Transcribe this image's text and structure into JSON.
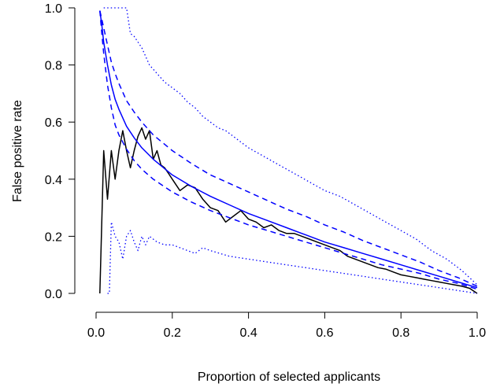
{
  "chart_data": {
    "type": "line",
    "title": "",
    "xlabel": "Proportion of selected applicants",
    "ylabel": "False positive rate",
    "xlim": [
      0.0,
      1.0
    ],
    "ylim": [
      0.0,
      1.0
    ],
    "xticks": [
      "0.0",
      "0.2",
      "0.4",
      "0.6",
      "0.8",
      "1.0"
    ],
    "yticks": [
      "0.0",
      "0.2",
      "0.4",
      "0.6",
      "0.8",
      "1.0"
    ],
    "grid": false,
    "legend": null,
    "series": [
      {
        "color": "#000000",
        "style": "solid",
        "x": [
          0.01,
          0.02,
          0.03,
          0.04,
          0.05,
          0.06,
          0.07,
          0.08,
          0.09,
          0.1,
          0.11,
          0.12,
          0.13,
          0.14,
          0.15,
          0.16,
          0.17,
          0.18,
          0.19,
          0.2,
          0.22,
          0.24,
          0.26,
          0.28,
          0.3,
          0.32,
          0.34,
          0.36,
          0.38,
          0.4,
          0.42,
          0.44,
          0.46,
          0.48,
          0.5,
          0.52,
          0.54,
          0.56,
          0.58,
          0.6,
          0.62,
          0.64,
          0.66,
          0.68,
          0.7,
          0.72,
          0.74,
          0.76,
          0.78,
          0.8,
          0.82,
          0.84,
          0.86,
          0.88,
          0.9,
          0.92,
          0.94,
          0.96,
          0.98,
          1.0
        ],
        "values": [
          0.0,
          0.5,
          0.33,
          0.5,
          0.4,
          0.5,
          0.57,
          0.5,
          0.44,
          0.5,
          0.55,
          0.58,
          0.54,
          0.57,
          0.47,
          0.5,
          0.45,
          0.44,
          0.42,
          0.4,
          0.36,
          0.38,
          0.37,
          0.33,
          0.3,
          0.29,
          0.25,
          0.27,
          0.29,
          0.26,
          0.25,
          0.23,
          0.24,
          0.22,
          0.21,
          0.21,
          0.2,
          0.19,
          0.18,
          0.17,
          0.16,
          0.15,
          0.13,
          0.12,
          0.11,
          0.1,
          0.09,
          0.085,
          0.075,
          0.065,
          0.06,
          0.055,
          0.05,
          0.045,
          0.04,
          0.035,
          0.03,
          0.025,
          0.018,
          0.0
        ]
      },
      {
        "color": "#0000ff",
        "style": "solid",
        "x": [
          0.01,
          0.015,
          0.02,
          0.03,
          0.04,
          0.05,
          0.06,
          0.08,
          0.1,
          0.12,
          0.15,
          0.2,
          0.25,
          0.3,
          0.35,
          0.4,
          0.45,
          0.5,
          0.55,
          0.6,
          0.65,
          0.7,
          0.75,
          0.8,
          0.85,
          0.9,
          0.95,
          1.0
        ],
        "values": [
          0.99,
          0.94,
          0.88,
          0.8,
          0.73,
          0.68,
          0.645,
          0.585,
          0.545,
          0.51,
          0.47,
          0.415,
          0.375,
          0.34,
          0.31,
          0.28,
          0.255,
          0.23,
          0.205,
          0.18,
          0.16,
          0.14,
          0.12,
          0.1,
          0.08,
          0.06,
          0.04,
          0.02
        ]
      },
      {
        "color": "#0000ff",
        "style": "dashed",
        "x": [
          0.01,
          0.015,
          0.02,
          0.03,
          0.04,
          0.05,
          0.06,
          0.08,
          0.1,
          0.12,
          0.15,
          0.2,
          0.25,
          0.3,
          0.35,
          0.4,
          0.45,
          0.5,
          0.55,
          0.6,
          0.65,
          0.7,
          0.75,
          0.8,
          0.85,
          0.9,
          0.95,
          1.0
        ],
        "values": [
          0.99,
          0.96,
          0.93,
          0.87,
          0.81,
          0.77,
          0.735,
          0.675,
          0.635,
          0.6,
          0.555,
          0.5,
          0.455,
          0.415,
          0.385,
          0.355,
          0.325,
          0.295,
          0.27,
          0.24,
          0.215,
          0.185,
          0.16,
          0.135,
          0.11,
          0.08,
          0.055,
          0.025
        ]
      },
      {
        "color": "#0000ff",
        "style": "dashed",
        "x": [
          0.01,
          0.015,
          0.02,
          0.03,
          0.04,
          0.05,
          0.06,
          0.08,
          0.1,
          0.12,
          0.15,
          0.2,
          0.25,
          0.3,
          0.35,
          0.4,
          0.45,
          0.5,
          0.55,
          0.6,
          0.65,
          0.7,
          0.75,
          0.8,
          0.85,
          0.9,
          0.95,
          1.0
        ],
        "values": [
          0.99,
          0.91,
          0.84,
          0.73,
          0.65,
          0.59,
          0.555,
          0.505,
          0.465,
          0.435,
          0.4,
          0.355,
          0.32,
          0.29,
          0.265,
          0.24,
          0.22,
          0.2,
          0.18,
          0.16,
          0.14,
          0.12,
          0.1,
          0.085,
          0.07,
          0.05,
          0.035,
          0.015
        ]
      },
      {
        "color": "#0000ff",
        "style": "dotted",
        "x": [
          0.02,
          0.04,
          0.06,
          0.08,
          0.09,
          0.1,
          0.12,
          0.14,
          0.16,
          0.18,
          0.2,
          0.22,
          0.24,
          0.26,
          0.28,
          0.3,
          0.32,
          0.34,
          0.36,
          0.38,
          0.4,
          0.44,
          0.48,
          0.52,
          0.56,
          0.6,
          0.64,
          0.68,
          0.72,
          0.76,
          0.8,
          0.84,
          0.88,
          0.92,
          0.96,
          1.0
        ],
        "values": [
          1.0,
          1.0,
          1.0,
          1.0,
          0.91,
          0.9,
          0.86,
          0.8,
          0.77,
          0.74,
          0.72,
          0.7,
          0.67,
          0.65,
          0.62,
          0.6,
          0.58,
          0.57,
          0.55,
          0.53,
          0.51,
          0.48,
          0.45,
          0.42,
          0.39,
          0.36,
          0.34,
          0.31,
          0.28,
          0.25,
          0.22,
          0.19,
          0.15,
          0.12,
          0.08,
          0.03
        ]
      },
      {
        "color": "#0000ff",
        "style": "dotted",
        "x": [
          0.03,
          0.035,
          0.04,
          0.05,
          0.06,
          0.07,
          0.08,
          0.09,
          0.1,
          0.11,
          0.12,
          0.13,
          0.14,
          0.15,
          0.16,
          0.18,
          0.2,
          0.22,
          0.24,
          0.26,
          0.28,
          0.3,
          0.35,
          0.4,
          0.45,
          0.5,
          0.55,
          0.6,
          0.65,
          0.7,
          0.75,
          0.8,
          0.85,
          0.9,
          0.95,
          1.0
        ],
        "values": [
          0.0,
          0.0,
          0.25,
          0.2,
          0.18,
          0.12,
          0.2,
          0.22,
          0.18,
          0.15,
          0.2,
          0.17,
          0.2,
          0.19,
          0.18,
          0.17,
          0.17,
          0.16,
          0.15,
          0.14,
          0.16,
          0.15,
          0.13,
          0.12,
          0.11,
          0.1,
          0.09,
          0.08,
          0.07,
          0.06,
          0.05,
          0.04,
          0.03,
          0.02,
          0.01,
          0.0
        ]
      }
    ]
  }
}
